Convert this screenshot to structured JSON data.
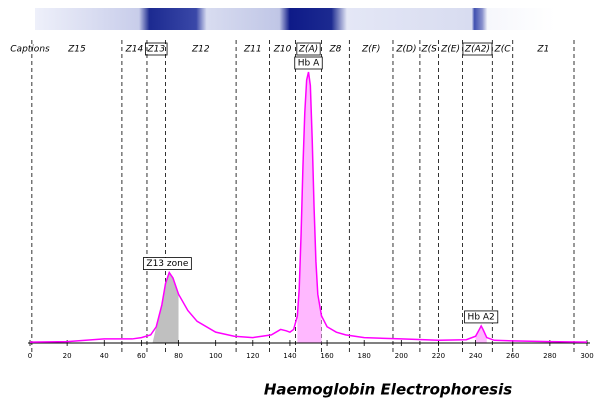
{
  "chart_data": {
    "type": "line",
    "title": "Haemoglobin Electrophoresis",
    "caption_header": "Captions",
    "xlim": [
      0,
      300
    ],
    "ylim": [
      0,
      100
    ],
    "xticks": [
      0,
      20,
      40,
      60,
      80,
      100,
      120,
      140,
      160,
      180,
      200,
      220,
      240,
      260,
      280,
      300
    ],
    "zones": [
      {
        "label": "Z15",
        "from": 1,
        "to": 49.5
      },
      {
        "label": "Z14",
        "from": 49.5,
        "to": 63
      },
      {
        "label": "Z13",
        "from": 63,
        "to": 73,
        "boxed": true
      },
      {
        "label": "Z12",
        "from": 73,
        "to": 111
      },
      {
        "label": "Z11",
        "from": 111,
        "to": 129
      },
      {
        "label": "Z10",
        "from": 129,
        "to": 143
      },
      {
        "label": "Z(A)",
        "from": 143,
        "to": 157,
        "boxed": true
      },
      {
        "label": "Z8",
        "from": 157,
        "to": 172
      },
      {
        "label": "Z(F)",
        "from": 172,
        "to": 195.5
      },
      {
        "label": "Z(D)",
        "from": 195.5,
        "to": 210
      },
      {
        "label": "Z(S",
        "from": 210,
        "to": 220
      },
      {
        "label": "Z(E)",
        "from": 220,
        "to": 233
      },
      {
        "label": "Z(A2)",
        "from": 233,
        "to": 249,
        "boxed": true
      },
      {
        "label": "Z(C",
        "from": 249,
        "to": 260
      },
      {
        "label": "Z1",
        "from": 260,
        "to": 293
      }
    ],
    "x": [
      0,
      20,
      40,
      50,
      55,
      60,
      65,
      68,
      71,
      73,
      75,
      77,
      80,
      85,
      90,
      100,
      110,
      120,
      130,
      135,
      138,
      140,
      142,
      144,
      145,
      146,
      147,
      148,
      149,
      150,
      151,
      152,
      153,
      154,
      155,
      157,
      160,
      165,
      170,
      180,
      200,
      220,
      235,
      240,
      242,
      243,
      244,
      246,
      250,
      260,
      280,
      300
    ],
    "series": [
      {
        "color": "#ff00ff",
        "values": [
          0.3,
          0.5,
          1.5,
          1.5,
          1.5,
          2,
          3,
          6,
          14,
          22,
          26,
          24,
          18,
          12,
          8,
          4,
          2.5,
          2,
          3,
          5,
          4.5,
          4,
          5,
          10,
          20,
          40,
          65,
          85,
          97,
          100,
          95,
          75,
          50,
          30,
          18,
          10,
          6,
          4,
          3,
          2,
          1.5,
          1,
          1.2,
          2.5,
          5,
          6.3,
          5,
          2,
          1,
          0.8,
          0.5,
          0.3
        ]
      }
    ],
    "shading": [
      {
        "from": 66,
        "to": 80,
        "color": "#c0c0c0"
      },
      {
        "from": 144,
        "to": 157,
        "color": "#ffb8ff"
      },
      {
        "from": 240,
        "to": 246,
        "color": "#ffb8ff"
      }
    ],
    "annotations": [
      {
        "text": "Z13 zone",
        "x": 74,
        "y": 26
      },
      {
        "text": "Hb A",
        "x": 150,
        "y": 100
      },
      {
        "text": "Hb A2",
        "x": 243,
        "y": 6.3
      }
    ]
  }
}
